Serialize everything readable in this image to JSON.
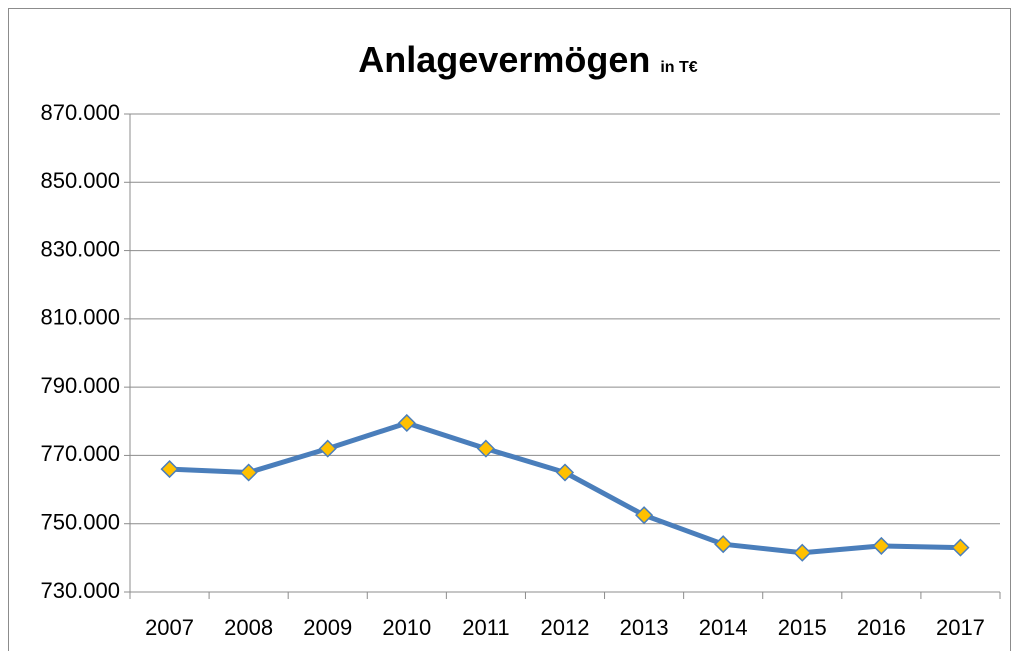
{
  "chart_data": {
    "type": "line",
    "title": "Anlagevermögen",
    "subtitle": "in T€",
    "categories": [
      "2007",
      "2008",
      "2009",
      "2010",
      "2011",
      "2012",
      "2013",
      "2014",
      "2015",
      "2016",
      "2017"
    ],
    "series": [
      {
        "name": "Anlagevermögen",
        "color": "#4a7ebb",
        "marker_color": "#ffc000",
        "values": [
          766000,
          765000,
          772000,
          779500,
          772000,
          765000,
          752500,
          744000,
          741500,
          743500,
          743000
        ]
      }
    ],
    "ylim": [
      730000,
      870000
    ],
    "yticks": [
      {
        "value": 730000,
        "label": "730.000"
      },
      {
        "value": 750000,
        "label": "750.000"
      },
      {
        "value": 770000,
        "label": "770.000"
      },
      {
        "value": 790000,
        "label": "790.000"
      },
      {
        "value": 810000,
        "label": "810.000"
      },
      {
        "value": 830000,
        "label": "830.000"
      },
      {
        "value": 850000,
        "label": "850.000"
      },
      {
        "value": 870000,
        "label": "870.000"
      }
    ],
    "grid": true
  }
}
